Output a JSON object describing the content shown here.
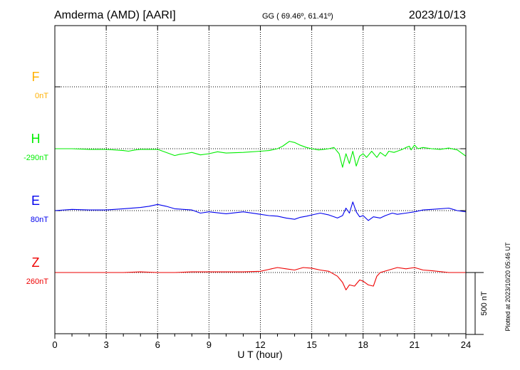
{
  "header": {
    "station": "Amderma (AMD)  [AARI]",
    "coords": "GG ( 69.46º,  61.41º)",
    "date": "2023/10/13"
  },
  "footer": {
    "plotted": "Plotted at 2023/10/20 05:46 UT"
  },
  "chart_data": {
    "type": "line",
    "xlabel": "U T (hour)",
    "xlim": [
      0,
      24
    ],
    "xticks": [
      0,
      3,
      6,
      9,
      12,
      15,
      18,
      21,
      24
    ],
    "scale_bar": {
      "label": "500 nT",
      "value": 500
    },
    "series": [
      {
        "name": "F",
        "offset_label": "0nT",
        "color": "#ffb000",
        "values": []
      },
      {
        "name": "H",
        "offset_label": "-290nT",
        "color": "#00ee00",
        "values": [
          [
            0,
            0
          ],
          [
            1,
            0
          ],
          [
            2,
            -5
          ],
          [
            3,
            -5
          ],
          [
            3.5,
            -10
          ],
          [
            4,
            -15
          ],
          [
            4.3,
            -20
          ],
          [
            4.7,
            -10
          ],
          [
            5,
            -5
          ],
          [
            6,
            -5
          ],
          [
            6.3,
            -20
          ],
          [
            6.7,
            -40
          ],
          [
            7,
            -55
          ],
          [
            7.3,
            -45
          ],
          [
            7.6,
            -40
          ],
          [
            8,
            -30
          ],
          [
            8.5,
            -50
          ],
          [
            9,
            -40
          ],
          [
            9.5,
            -25
          ],
          [
            10,
            -35
          ],
          [
            11,
            -30
          ],
          [
            12,
            -20
          ],
          [
            12.5,
            -15
          ],
          [
            13,
            0
          ],
          [
            13.3,
            20
          ],
          [
            13.5,
            40
          ],
          [
            13.7,
            60
          ],
          [
            14,
            50
          ],
          [
            14.3,
            30
          ],
          [
            14.7,
            10
          ],
          [
            15,
            0
          ],
          [
            15.4,
            -10
          ],
          [
            15.7,
            -5
          ],
          [
            16,
            0
          ],
          [
            16.3,
            10
          ],
          [
            16.6,
            -40
          ],
          [
            16.8,
            -150
          ],
          [
            17,
            -40
          ],
          [
            17.2,
            -120
          ],
          [
            17.4,
            -20
          ],
          [
            17.6,
            -140
          ],
          [
            17.8,
            -60
          ],
          [
            18,
            -40
          ],
          [
            18.2,
            -70
          ],
          [
            18.5,
            -20
          ],
          [
            18.8,
            -70
          ],
          [
            19,
            -30
          ],
          [
            19.3,
            -60
          ],
          [
            19.5,
            -20
          ],
          [
            19.8,
            -30
          ],
          [
            20,
            -20
          ],
          [
            20.3,
            -5
          ],
          [
            20.5,
            10
          ],
          [
            20.7,
            20
          ],
          [
            20.8,
            -10
          ],
          [
            21,
            30
          ],
          [
            21.2,
            0
          ],
          [
            21.5,
            10
          ],
          [
            22,
            0
          ],
          [
            22.5,
            -5
          ],
          [
            23,
            5
          ],
          [
            23.5,
            -10
          ],
          [
            24,
            -60
          ]
        ]
      },
      {
        "name": "E",
        "offset_label": "80nT",
        "color": "#0000ee",
        "values": [
          [
            0,
            0
          ],
          [
            1,
            10
          ],
          [
            2,
            5
          ],
          [
            3,
            5
          ],
          [
            4,
            15
          ],
          [
            5,
            25
          ],
          [
            5.5,
            35
          ],
          [
            6,
            50
          ],
          [
            6.5,
            35
          ],
          [
            7,
            15
          ],
          [
            8,
            5
          ],
          [
            8.5,
            -20
          ],
          [
            9,
            -10
          ],
          [
            10,
            -25
          ],
          [
            11,
            -10
          ],
          [
            12,
            -30
          ],
          [
            12.5,
            -40
          ],
          [
            13,
            -45
          ],
          [
            13.5,
            -60
          ],
          [
            14,
            -70
          ],
          [
            14.3,
            -55
          ],
          [
            14.7,
            -45
          ],
          [
            15,
            -35
          ],
          [
            15.5,
            -20
          ],
          [
            16,
            -35
          ],
          [
            16.5,
            -60
          ],
          [
            16.8,
            -40
          ],
          [
            17,
            20
          ],
          [
            17.2,
            -20
          ],
          [
            17.4,
            70
          ],
          [
            17.6,
            -10
          ],
          [
            17.8,
            -50
          ],
          [
            18,
            -40
          ],
          [
            18.3,
            -80
          ],
          [
            18.6,
            -50
          ],
          [
            19,
            -60
          ],
          [
            19.3,
            -40
          ],
          [
            19.7,
            -20
          ],
          [
            20,
            -30
          ],
          [
            20.5,
            -20
          ],
          [
            21,
            -10
          ],
          [
            21.5,
            5
          ],
          [
            22,
            10
          ],
          [
            23,
            20
          ],
          [
            23.5,
            0
          ],
          [
            24,
            -10
          ]
        ]
      },
      {
        "name": "Z",
        "offset_label": "260nT",
        "color": "#ee0000",
        "values": [
          [
            0,
            0
          ],
          [
            1,
            0
          ],
          [
            2,
            0
          ],
          [
            3,
            0
          ],
          [
            4,
            0
          ],
          [
            5,
            5
          ],
          [
            6,
            0
          ],
          [
            7,
            0
          ],
          [
            8,
            5
          ],
          [
            9,
            5
          ],
          [
            10,
            5
          ],
          [
            11,
            5
          ],
          [
            12,
            10
          ],
          [
            12.5,
            25
          ],
          [
            13,
            40
          ],
          [
            13.5,
            30
          ],
          [
            14,
            20
          ],
          [
            14.5,
            40
          ],
          [
            15,
            35
          ],
          [
            15.5,
            20
          ],
          [
            16,
            10
          ],
          [
            16.5,
            -30
          ],
          [
            16.8,
            -80
          ],
          [
            17,
            -140
          ],
          [
            17.2,
            -100
          ],
          [
            17.5,
            -110
          ],
          [
            17.8,
            -60
          ],
          [
            18,
            -70
          ],
          [
            18.3,
            -100
          ],
          [
            18.6,
            -110
          ],
          [
            18.8,
            -30
          ],
          [
            19,
            0
          ],
          [
            19.5,
            20
          ],
          [
            20,
            40
          ],
          [
            20.5,
            30
          ],
          [
            21,
            40
          ],
          [
            21.5,
            20
          ],
          [
            22,
            15
          ],
          [
            23,
            0
          ],
          [
            24,
            0
          ]
        ]
      }
    ]
  }
}
